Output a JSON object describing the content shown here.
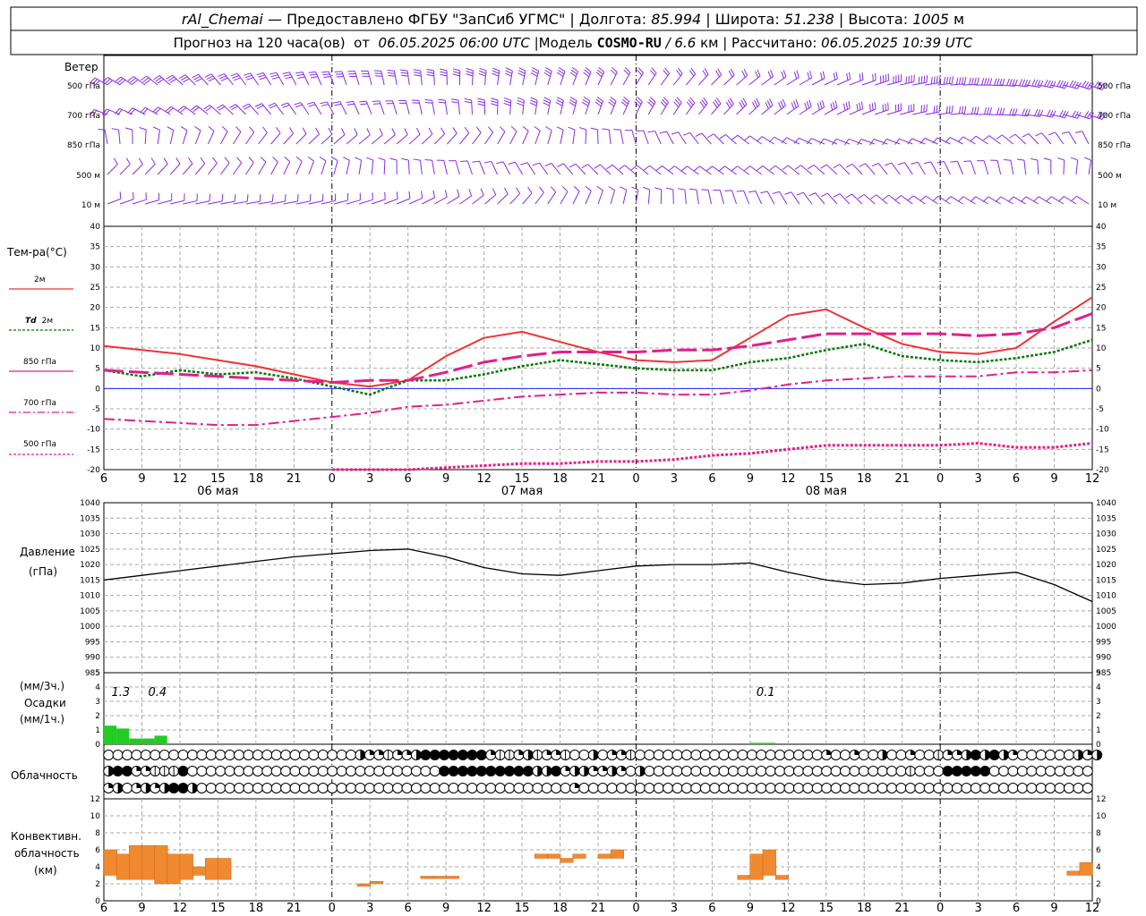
{
  "header": {
    "station": "rAl_Chemai",
    "provider": "Предоставлено ФГБУ \"ЗапСиб УГМС\"",
    "lon_label": "Долгота:",
    "lon_value": "85.994",
    "lat_label": "Широта:",
    "lat_value": "51.238",
    "alt_label": "Высота:",
    "alt_value": "1005",
    "alt_unit": "м",
    "forecast_prefix": "Прогноз на 120 часа(ов)  от ",
    "forecast_time": "06.05.2025 06:00 UTC",
    "model_prefix": "|Модель ",
    "model_name": "COSMO-RU",
    "model_res": " / 6.6",
    "model_res_unit": "км",
    "calc_prefix": "| Рассчитано: ",
    "calc_time": "06.05.2025 10:39 UTC"
  },
  "x_axis": {
    "hour_labels": [
      "6",
      "9",
      "12",
      "15",
      "18",
      "21",
      "0",
      "3",
      "6",
      "9",
      "12",
      "15",
      "18",
      "21",
      "0",
      "3",
      "6",
      "9",
      "12",
      "15",
      "18",
      "21",
      "0",
      "3",
      "6",
      "9",
      "12"
    ],
    "day_labels": [
      "06 мая",
      "07 мая",
      "08 мая"
    ]
  },
  "colors": {
    "t2m": "#ee3333",
    "td2m": "#007700",
    "t850": "#e0208c",
    "t700": "#e0208c",
    "t500": "#e0208c",
    "wind": "#8a2be2",
    "precip": "#22cc22",
    "conv": "#f08a30",
    "zero_line": "#2222ff"
  },
  "wind_panel": {
    "title": "Ветер",
    "levels": [
      "500 гПа",
      "700 гПа",
      "850 гПа",
      "500  м",
      "10   м"
    ],
    "right_levels": [
      "500 гПа",
      "700 гПа",
      "850 гПа",
      "500  м",
      "10   м"
    ]
  },
  "chart_data": [
    {
      "type": "line",
      "title": "Тем-ра(°C)",
      "ylim": [
        -20,
        40
      ],
      "yticks": [
        "40",
        "35",
        "30",
        "25",
        "20",
        "15",
        "10",
        "5",
        "0",
        "-5",
        "-10",
        "-15",
        "-20"
      ],
      "x_hours": [
        0,
        3,
        6,
        9,
        12,
        15,
        18,
        21,
        24,
        27,
        30,
        33,
        36,
        39,
        42,
        45,
        48,
        51,
        54,
        57,
        60,
        63,
        66,
        69,
        72,
        75,
        78
      ],
      "series": [
        {
          "name": "2м",
          "values": [
            10.5,
            9.5,
            8.5,
            7,
            5.5,
            3.5,
            1.5,
            0.5,
            2,
            8,
            12.5,
            14,
            11.5,
            9,
            7,
            6.5,
            7,
            12.5,
            18,
            19.5,
            15,
            11,
            9,
            8.5,
            10,
            16.5,
            22.5
          ]
        },
        {
          "name": "Td 2м",
          "values": [
            4.5,
            3,
            4.5,
            3.5,
            4,
            2.5,
            0.5,
            -1.5,
            2,
            2,
            3.5,
            5.5,
            7,
            6,
            5,
            4.5,
            4.5,
            6.5,
            7.5,
            9.5,
            11,
            8,
            7,
            6.5,
            7.5,
            9,
            12
          ]
        },
        {
          "name": "850 гПа",
          "values": [
            4.5,
            4,
            3.5,
            3,
            2.5,
            2,
            1.5,
            2,
            2,
            4,
            6.5,
            8,
            9,
            9,
            9,
            9.5,
            9.5,
            10.5,
            12,
            13.5,
            13.5,
            13.5,
            13.5,
            13,
            13.5,
            15,
            18.5
          ]
        },
        {
          "name": "700 гПа",
          "values": [
            -7.5,
            -8,
            -8.5,
            -9,
            -9,
            -8,
            -7,
            -6,
            -4.5,
            -4,
            -3,
            -2,
            -1.5,
            -1,
            -1,
            -1.5,
            -1.5,
            -0.5,
            1,
            2,
            2.5,
            3,
            3,
            3,
            4,
            4,
            4.5
          ]
        },
        {
          "name": "500 гПа",
          "values": [
            null,
            null,
            null,
            null,
            null,
            null,
            -20,
            -20,
            -20,
            -19.5,
            -19,
            -18.5,
            -18.5,
            -18,
            -18,
            -17.5,
            -16.5,
            -16,
            -15,
            -14,
            -14,
            -14,
            -14,
            -13.5,
            -14.5,
            -14.5,
            -13.5
          ]
        }
      ]
    },
    {
      "type": "line",
      "title": "Давление",
      "ylabel": "(гПа)",
      "ylim": [
        985,
        1040
      ],
      "yticks": [
        "1040",
        "1035",
        "1030",
        "1025",
        "1020",
        "1015",
        "1010",
        "1005",
        "1000",
        "995",
        "990",
        "985"
      ],
      "x_hours": [
        0,
        3,
        6,
        9,
        12,
        15,
        18,
        21,
        24,
        27,
        30,
        33,
        36,
        39,
        42,
        45,
        48,
        51,
        54,
        57,
        60,
        63,
        66,
        69,
        72,
        75,
        78
      ],
      "series": [
        {
          "name": "Давление",
          "values": [
            1015,
            1016.5,
            1018,
            1019.5,
            1021,
            1022.5,
            1023.5,
            1024.5,
            1025,
            1022.5,
            1019,
            1017,
            1016.5,
            1018,
            1019.5,
            1020,
            1020,
            1020.5,
            1017.5,
            1015,
            1013.5,
            1014,
            1015.5,
            1016.5,
            1017.5,
            1013.5,
            1008
          ]
        }
      ]
    },
    {
      "type": "bar",
      "title": "Осадки",
      "ylabel_top": "(мм/3ч.)",
      "ylabel_bottom": "(мм/1ч.)",
      "ylim": [
        0,
        5
      ],
      "yticks": [
        "5",
        "4",
        "3",
        "2",
        "1",
        "0"
      ],
      "annotations": [
        "1.3",
        "0.4",
        "0.1"
      ],
      "bars": [
        {
          "hour": 0.0,
          "value": 1.3
        },
        {
          "hour": 1.0,
          "value": 1.1
        },
        {
          "hour": 2.0,
          "value": 0.4
        },
        {
          "hour": 3.0,
          "value": 0.4
        },
        {
          "hour": 4.0,
          "value": 0.6
        },
        {
          "hour": 51.0,
          "value": 0.1
        },
        {
          "hour": 52.0,
          "value": 0.1
        }
      ]
    },
    {
      "type": "bar",
      "title": "Конвективн. облачность",
      "ylabel": "(км)",
      "ylim": [
        0,
        12
      ],
      "yticks": [
        "12",
        "10",
        "8",
        "6",
        "4",
        "2",
        "0"
      ],
      "blocks": [
        {
          "hour": 0,
          "base": 3,
          "top": 6
        },
        {
          "hour": 1,
          "base": 2.5,
          "top": 5.5
        },
        {
          "hour": 2,
          "base": 2.5,
          "top": 6.5
        },
        {
          "hour": 3,
          "base": 2.5,
          "top": 6.5
        },
        {
          "hour": 4,
          "base": 2,
          "top": 6.5
        },
        {
          "hour": 5,
          "base": 2,
          "top": 5.5
        },
        {
          "hour": 6,
          "base": 2.5,
          "top": 5.5
        },
        {
          "hour": 7,
          "base": 3,
          "top": 4
        },
        {
          "hour": 8,
          "base": 2.5,
          "top": 5
        },
        {
          "hour": 9,
          "base": 2.5,
          "top": 5
        },
        {
          "hour": 20,
          "base": 1.7,
          "top": 2
        },
        {
          "hour": 21,
          "base": 2,
          "top": 2.3
        },
        {
          "hour": 25,
          "base": 2.6,
          "top": 2.9
        },
        {
          "hour": 26,
          "base": 2.6,
          "top": 2.9
        },
        {
          "hour": 27,
          "base": 2.6,
          "top": 2.9
        },
        {
          "hour": 34,
          "base": 5,
          "top": 5.5
        },
        {
          "hour": 35,
          "base": 5,
          "top": 5.5
        },
        {
          "hour": 36,
          "base": 4.5,
          "top": 5
        },
        {
          "hour": 37,
          "base": 5,
          "top": 5.5
        },
        {
          "hour": 39,
          "base": 5,
          "top": 5.5
        },
        {
          "hour": 40,
          "base": 5,
          "top": 6
        },
        {
          "hour": 50,
          "base": 2.5,
          "top": 3
        },
        {
          "hour": 51,
          "base": 2.5,
          "top": 5.5
        },
        {
          "hour": 52,
          "base": 3,
          "top": 6
        },
        {
          "hour": 53,
          "base": 2.5,
          "top": 3
        },
        {
          "hour": 76,
          "base": 3,
          "top": 3.5
        },
        {
          "hour": 77,
          "base": 3,
          "top": 4.5
        }
      ]
    }
  ],
  "legend": {
    "temp_title": "Тем-ра(°C)",
    "t2m": "2м",
    "td_a": "Td",
    "td_b": "2м",
    "t850": "850 гПа",
    "t700": "700 гПа",
    "t500": "500 гПа"
  },
  "labels": {
    "pressure": "Давление",
    "pressure_unit": "(гПа)",
    "precip_top": "(мм/3ч.)",
    "precip": "Осадки",
    "precip_bottom": "(мм/1ч.)",
    "cloud": "Облачность",
    "conv_a": "Конвективн.",
    "conv_b": "облачность",
    "conv_unit": "(км)"
  },
  "precip_annotations": [
    "1.3",
    "0.4",
    "0.1"
  ],
  "cloud_rows": {
    "row1": [
      0,
      0,
      0,
      0,
      0,
      0,
      0,
      0,
      0,
      0,
      0,
      0,
      0,
      0,
      0,
      0,
      0,
      0,
      0,
      0,
      0,
      0,
      0,
      0,
      0,
      0,
      0,
      3,
      2,
      2,
      1,
      2,
      2,
      3,
      4,
      4,
      4,
      4,
      4,
      4,
      4,
      2,
      1,
      1,
      2,
      3,
      1,
      2,
      2,
      1,
      0,
      0,
      3,
      0,
      2,
      2,
      1,
      0,
      0,
      0,
      0,
      0,
      0,
      0,
      0,
      0,
      0,
      0,
      0,
      0,
      0,
      0,
      0,
      0,
      0,
      0,
      0,
      2,
      0,
      0,
      2,
      0,
      0,
      3,
      0,
      0,
      2,
      0,
      0,
      1,
      2,
      2,
      3,
      4,
      3,
      4,
      3,
      2,
      0,
      0,
      0,
      0,
      0,
      0,
      3,
      2,
      3
    ],
    "row2": [
      3,
      4,
      4,
      2,
      2,
      1,
      1,
      1,
      4,
      0,
      0,
      0,
      0,
      0,
      0,
      0,
      0,
      0,
      0,
      0,
      0,
      0,
      0,
      0,
      0,
      0,
      0,
      0,
      0,
      0,
      0,
      0,
      0,
      0,
      0,
      0,
      4,
      4,
      4,
      4,
      4,
      4,
      4,
      4,
      4,
      4,
      3,
      3,
      4,
      2,
      3,
      3,
      2,
      2,
      3,
      2,
      0,
      3,
      0,
      0,
      0,
      0,
      0,
      0,
      0,
      0,
      0,
      0,
      0,
      0,
      0,
      0,
      0,
      0,
      0,
      0,
      0,
      0,
      0,
      0,
      0,
      0,
      0,
      0,
      0,
      0,
      1,
      0,
      0,
      0,
      4,
      4,
      4,
      4,
      4,
      0,
      0,
      0,
      0,
      0,
      0,
      0,
      0,
      0,
      0,
      0
    ],
    "row3": [
      2,
      3,
      0,
      2,
      3,
      2,
      3,
      4,
      4,
      3,
      0,
      0,
      0,
      0,
      0,
      0,
      0,
      0,
      0,
      0,
      0,
      0,
      0,
      0,
      0,
      0,
      0,
      0,
      0,
      0,
      0,
      0,
      0,
      0,
      0,
      0,
      0,
      0,
      0,
      0,
      0,
      0,
      0,
      0,
      0,
      0,
      0,
      0,
      0,
      0,
      2,
      0,
      0,
      0,
      0,
      0,
      0,
      0,
      0,
      0,
      0,
      0,
      0,
      0,
      0,
      0,
      0,
      0,
      0,
      0,
      0,
      0,
      0,
      0,
      0,
      0,
      0,
      0,
      0,
      0,
      0,
      0,
      0,
      0,
      0,
      0,
      0,
      0,
      0,
      0,
      0,
      0,
      0,
      0,
      0,
      0,
      0,
      0,
      0,
      0,
      0,
      0,
      0,
      0,
      0,
      0
    ]
  }
}
